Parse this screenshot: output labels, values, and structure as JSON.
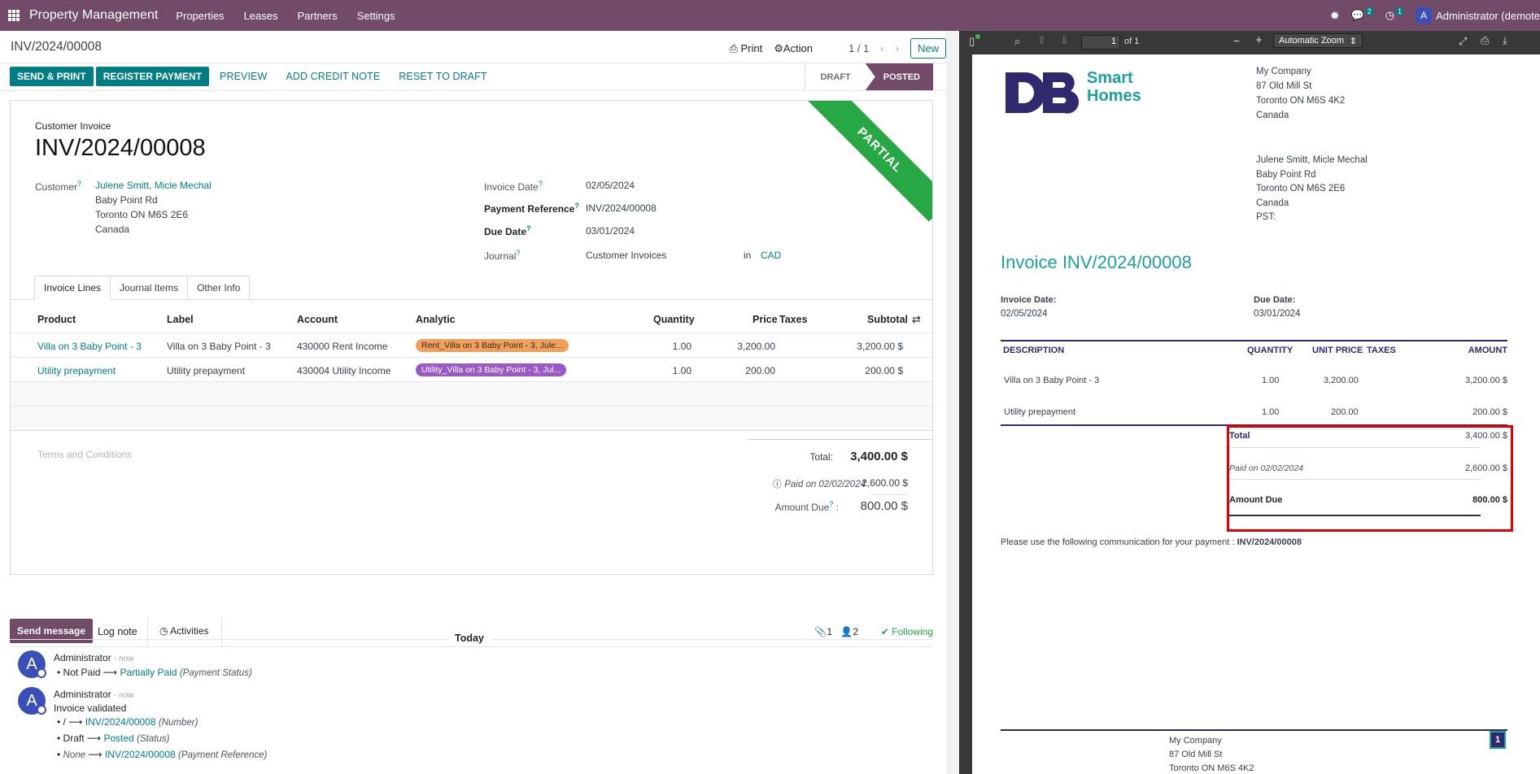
{
  "topnav": {
    "app_name": "Property Management",
    "menus": [
      "Properties",
      "Leases",
      "Partners",
      "Settings"
    ],
    "chat_count": "2",
    "activity_count": "1",
    "user_initial": "A",
    "user_name": "Administrator (demote"
  },
  "control_panel": {
    "breadcrumb": "INV/2024/00008",
    "print_label": "Print",
    "action_label": "Action",
    "pager": "1 / 1",
    "new_label": "New"
  },
  "actions": {
    "send_print": "SEND & PRINT",
    "register_payment": "REGISTER PAYMENT",
    "preview": "PREVIEW",
    "add_credit_note": "ADD CREDIT NOTE",
    "reset_to_draft": "RESET TO DRAFT",
    "status_draft": "DRAFT",
    "status_posted": "POSTED"
  },
  "invoice": {
    "ribbon": "PARTIAL",
    "type_label": "Customer Invoice",
    "number": "INV/2024/00008",
    "customer_label": "Customer",
    "customer_name": "Julene Smitt, Micle Mechal",
    "customer_street": "Baby Point Rd",
    "customer_city": "Toronto ON M6S 2E6",
    "customer_country": "Canada",
    "invoice_date_label": "Invoice Date",
    "invoice_date": "02/05/2024",
    "payment_ref_label": "Payment Reference",
    "payment_ref": "INV/2024/00008",
    "due_date_label": "Due Date",
    "due_date": "03/01/2024",
    "journal_label": "Journal",
    "journal": "Customer Invoices",
    "in_label": "in",
    "currency": "CAD"
  },
  "tabs": [
    "Invoice Lines",
    "Journal Items",
    "Other Info"
  ],
  "lines": {
    "headers": {
      "product": "Product",
      "label": "Label",
      "account": "Account",
      "analytic": "Analytic",
      "quantity": "Quantity",
      "price": "Price",
      "taxes": "Taxes",
      "subtotal": "Subtotal"
    },
    "rows": [
      {
        "product": "Villa on 3 Baby Point - 3",
        "label": "Villa on 3 Baby Point - 3",
        "account": "430000 Rent Income",
        "analytic": "Rent_Villa on 3 Baby Point - 3, Jule...",
        "quantity": "1.00",
        "price": "3,200.00",
        "subtotal": "3,200.00 $"
      },
      {
        "product": "Utility prepayment",
        "label": "Utility prepayment",
        "account": "430004 Utility Income",
        "analytic": "Utility_Villa on 3 Baby Point - 3, Jul...",
        "quantity": "1.00",
        "price": "200.00",
        "subtotal": "200.00 $"
      }
    ],
    "tag_colors": [
      "#f0a05a",
      "#9b59c6"
    ]
  },
  "totals": {
    "terms_placeholder": "Terms and Conditions",
    "total_label": "Total:",
    "total": "3,400.00 $",
    "paid_label": "Paid on 02/02/2024",
    "paid": "2,600.00 $",
    "amount_due_label": "Amount Due",
    "amount_due": "800.00 $"
  },
  "chatter": {
    "send_message": "Send message",
    "log_note": "Log note",
    "activities": "Activities",
    "attachments": "1",
    "followers": "2",
    "following": "Following",
    "today": "Today",
    "messages": [
      {
        "author": "Administrator",
        "time": "- now",
        "lines": [
          {
            "old": "Not Paid",
            "new": "Partially Paid",
            "field": "(Payment Status)"
          }
        ]
      },
      {
        "author": "Administrator",
        "time": "- now",
        "body": "Invoice validated",
        "lines": [
          {
            "old": "/",
            "new": "INV/2024/00008",
            "field": "(Number)"
          },
          {
            "old": "Draft",
            "new": "Posted",
            "field": "(Status)"
          },
          {
            "old": "None",
            "new": "INV/2024/00008",
            "field": "(Payment Reference)"
          }
        ]
      }
    ]
  },
  "pdf": {
    "page_input": "1",
    "page_of": "of 1",
    "zoom": "Automatic Zoom",
    "logo_text1": "Smart",
    "logo_text2": "Homes",
    "company_name": "My Company",
    "company_street": "87 Old Mill St",
    "company_city": "Toronto ON M6S 4K2",
    "company_country": "Canada",
    "cust_name": "Julene Smitt, Micle Mechal",
    "cust_street": "Baby Point Rd",
    "cust_city": "Toronto ON M6S 2E6",
    "cust_country": "Canada",
    "cust_pst": "PST:",
    "title": "Invoice INV/2024/00008",
    "invoice_date_label": "Invoice Date:",
    "invoice_date": "02/05/2024",
    "due_date_label": "Due Date:",
    "due_date": "03/01/2024",
    "headers": {
      "description": "DESCRIPTION",
      "quantity": "QUANTITY",
      "unit_price": "UNIT PRICE",
      "taxes": "TAXES",
      "amount": "AMOUNT"
    },
    "rows": [
      {
        "description": "Villa on 3 Baby Point - 3",
        "quantity": "1.00",
        "unit_price": "3,200.00",
        "amount": "3,200.00 $"
      },
      {
        "description": "Utility prepayment",
        "quantity": "1.00",
        "unit_price": "200.00",
        "amount": "200.00 $"
      }
    ],
    "total_label": "Total",
    "total": "3,400.00 $",
    "paid_label": "Paid on 02/02/2024",
    "paid": "2,600.00 $",
    "due_label": "Amount Due",
    "due": "800.00 $",
    "communication": "Please use the following communication for your payment :",
    "communication_ref": "INV/2024/00008",
    "page_number": "1",
    "brand_color": "#2e2a6d",
    "accent_color": "#1aa39a",
    "highlight_color": "#e00000"
  }
}
